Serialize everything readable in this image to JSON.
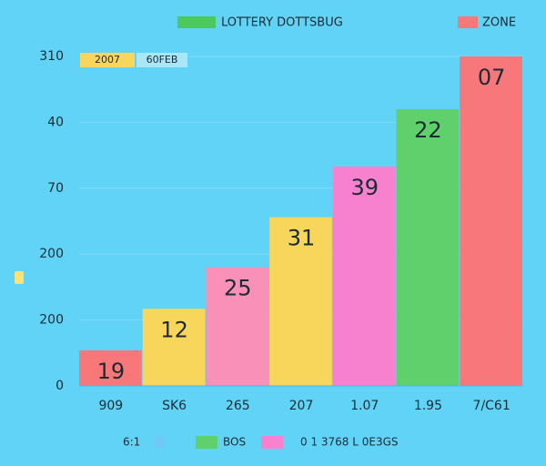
{
  "chart_data": {
    "type": "bar",
    "categories": [
      "909",
      "SK6",
      "265",
      "207",
      "1.07",
      "1.95",
      "7/C61"
    ],
    "values": [
      0.54,
      1.17,
      1.8,
      2.56,
      3.33,
      4.2,
      5.0
    ],
    "value_labels": [
      "19",
      "12",
      "25",
      "31",
      "39",
      "22",
      "07"
    ],
    "colors": [
      "#f8787a",
      "#f8d55b",
      "#f890b8",
      "#f8d55b",
      "#f780cf",
      "#5fd06c",
      "#f8777a"
    ],
    "ylim": [
      0,
      5
    ],
    "yticks": [
      {
        "value": 0,
        "label": "0"
      },
      {
        "value": 1,
        "label": "200"
      },
      {
        "value": 2,
        "label": "200"
      },
      {
        "value": 3,
        "label": "70"
      },
      {
        "value": 4,
        "label": "40"
      },
      {
        "value": 5,
        "label": "310"
      }
    ],
    "legend_top": [
      {
        "label": "LOTTERY DOTTSBUG",
        "color": "#4cc95c"
      },
      {
        "label": "ZONE",
        "color": "#f8777a"
      }
    ],
    "tags": [
      {
        "label": "2007",
        "color": "#f8d55b"
      },
      {
        "label": "60FEB",
        "color": "#a8e6f8"
      }
    ],
    "legend_bottom": [
      {
        "label": "6:1",
        "color": "#6ec8f8"
      },
      {
        "label": "BOS",
        "color": "#5fd06c"
      },
      {
        "label": "0 1 3768 L 0E3GS",
        "color": "#f780cf"
      }
    ]
  }
}
